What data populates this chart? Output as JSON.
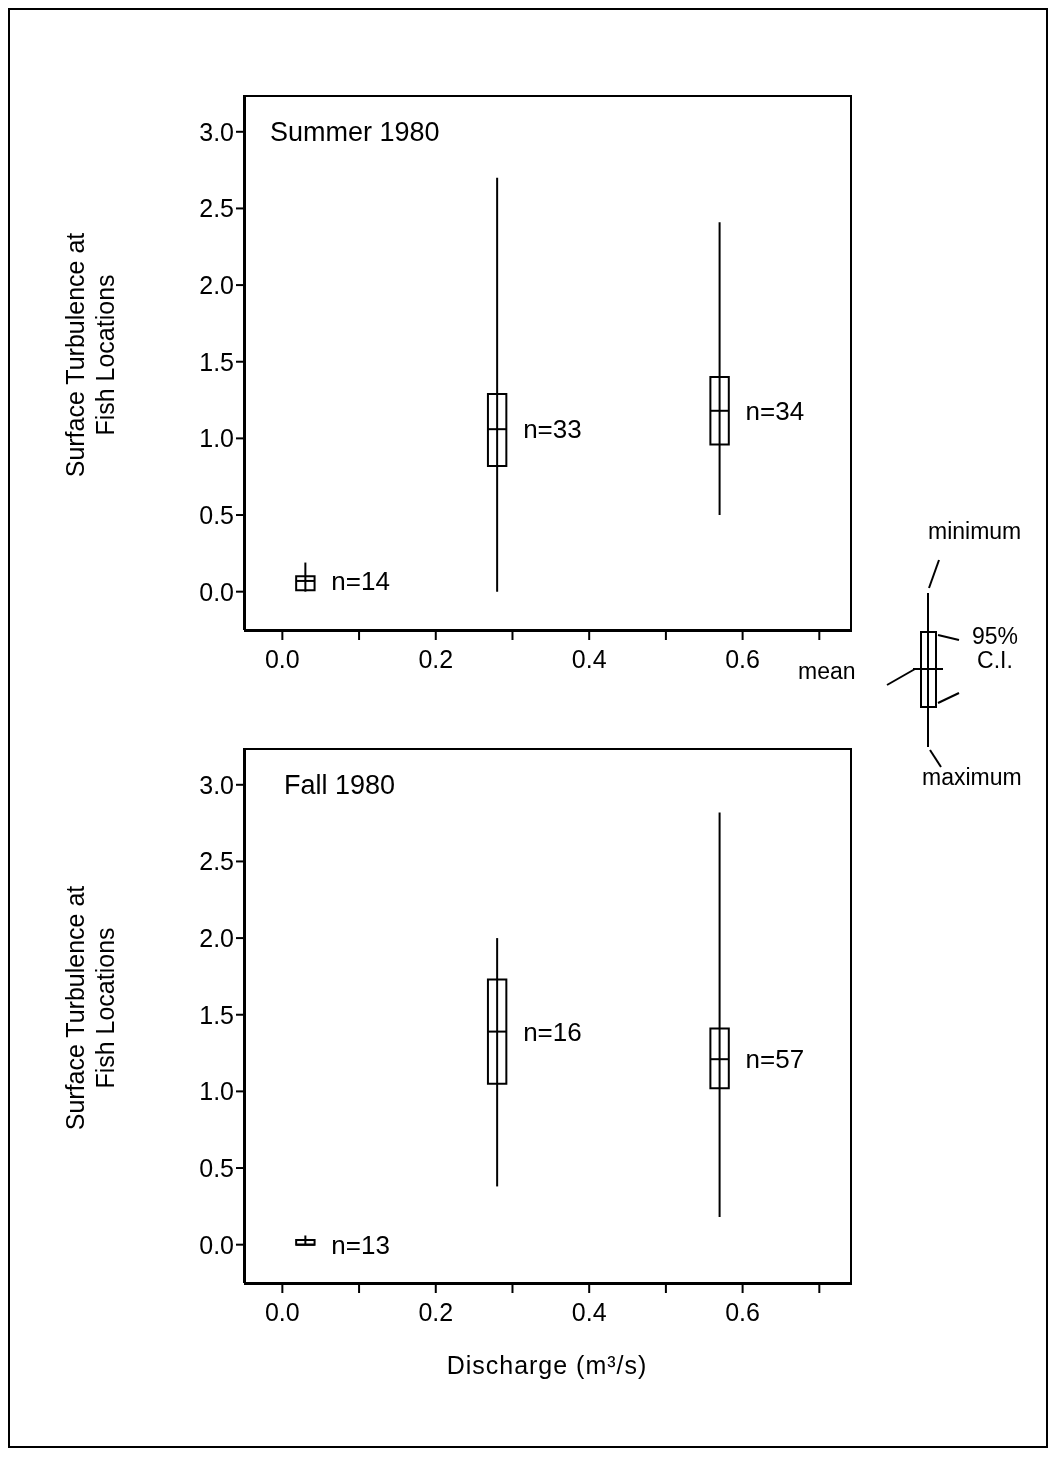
{
  "chart_data": [
    {
      "type": "box",
      "title": "Summer 1980",
      "ylabel": "Surface Turbulence at Fish Locations",
      "x": [
        0.03,
        0.28,
        0.57
      ],
      "boxes": [
        {
          "low": 0.0,
          "q1": 0.01,
          "median": 0.07,
          "q3": 0.1,
          "high": 0.19
        },
        {
          "low": 0.0,
          "q1": 0.82,
          "median": 1.06,
          "q3": 1.29,
          "high": 2.7
        },
        {
          "low": 0.5,
          "q1": 0.96,
          "median": 1.18,
          "q3": 1.4,
          "high": 2.41
        }
      ],
      "color": "#000000",
      "xlim": [
        -0.05,
        0.74
      ],
      "ylim": [
        -0.25,
        3.24
      ],
      "xticks": [
        {
          "value": 0,
          "label": "0.0"
        },
        {
          "value": 0.1,
          "label": null
        },
        {
          "value": 0.2,
          "label": "0.2"
        },
        {
          "value": 0.3,
          "label": null
        },
        {
          "value": 0.4,
          "label": "0.4"
        },
        {
          "value": 0.5,
          "label": null
        },
        {
          "value": 0.6,
          "label": "0.6"
        },
        {
          "value": 0.7,
          "label": null
        }
      ],
      "yticks": [
        {
          "value": 0,
          "label": "0.0"
        },
        {
          "value": 0.5,
          "label": "0.5"
        },
        {
          "value": 1,
          "label": "1.0"
        },
        {
          "value": 1.5,
          "label": "1.5"
        },
        {
          "value": 2,
          "label": "2.0"
        },
        {
          "value": 2.5,
          "label": "2.5"
        },
        {
          "value": 3,
          "label": "3.0"
        }
      ],
      "annotations": [
        {
          "text": "n=14",
          "x": 0.03,
          "y": 0.07
        },
        {
          "text": "n=33",
          "x": 0.28,
          "y": 1.06
        },
        {
          "text": "n=34",
          "x": 0.57,
          "y": 1.18
        },
        "minimum",
        "95% C.I.",
        "mean",
        "maximum"
      ]
    },
    {
      "type": "box",
      "title": "Fall 1980",
      "ylabel": "Surface Turbulence at Fish Locations",
      "xlabel": "Discharge (m³/s)",
      "x": [
        0.03,
        0.28,
        0.57
      ],
      "boxes": [
        {
          "low": 0.0,
          "q1": 0.0,
          "median": 0.0,
          "q3": 0.03,
          "high": 0.06
        },
        {
          "low": 0.38,
          "q1": 1.05,
          "median": 1.39,
          "q3": 1.73,
          "high": 2.0
        },
        {
          "low": 0.18,
          "q1": 1.02,
          "median": 1.21,
          "q3": 1.41,
          "high": 2.82
        }
      ],
      "color": "#000000",
      "xlim": [
        -0.05,
        0.74
      ],
      "ylim": [
        -0.25,
        3.24
      ],
      "xticks": [
        {
          "value": 0,
          "label": "0.0"
        },
        {
          "value": 0.1,
          "label": null
        },
        {
          "value": 0.2,
          "label": "0.2"
        },
        {
          "value": 0.3,
          "label": null
        },
        {
          "value": 0.4,
          "label": "0.4"
        },
        {
          "value": 0.5,
          "label": null
        },
        {
          "value": 0.6,
          "label": "0.6"
        },
        {
          "value": 0.7,
          "label": null
        }
      ],
      "yticks": [
        {
          "value": 0,
          "label": "0.0"
        },
        {
          "value": 0.5,
          "label": "0.5"
        },
        {
          "value": 1,
          "label": "1.0"
        },
        {
          "value": 1.5,
          "label": "1.5"
        },
        {
          "value": 2,
          "label": "2.0"
        },
        {
          "value": 2.5,
          "label": "2.5"
        },
        {
          "value": 3,
          "label": "3.0"
        }
      ],
      "annotations": [
        {
          "text": "n=13",
          "x": 0.03,
          "y": 0.0
        },
        {
          "text": "n=16",
          "x": 0.28,
          "y": 1.39
        },
        {
          "text": "n=57",
          "x": 0.57,
          "y": 1.21
        }
      ]
    }
  ]
}
